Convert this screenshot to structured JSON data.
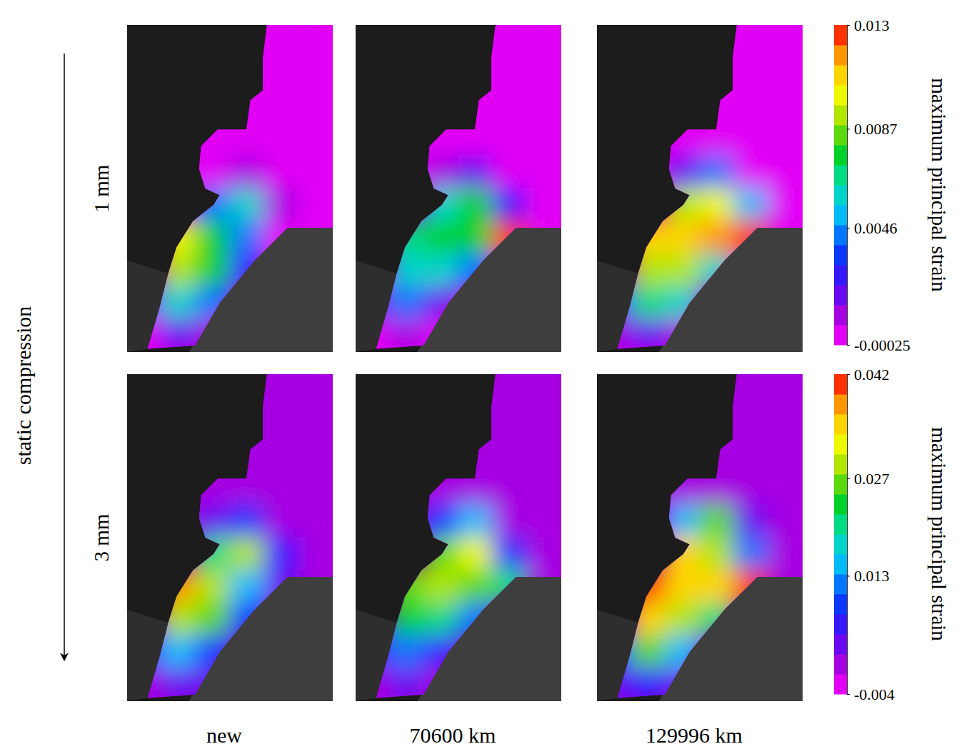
{
  "chart_data": {
    "type": "heatmap",
    "y_label": "static compression",
    "rows": [
      "1 mm",
      "3 mm"
    ],
    "columns": [
      "new",
      "70600 km",
      "129996 km"
    ],
    "colorbars": [
      {
        "label": "maximum principal strain",
        "range": [
          -0.00025,
          0.013
        ],
        "ticks": [
          -0.00025,
          0.0046,
          0.0087,
          0.013
        ]
      },
      {
        "label": "maximum principal strain",
        "range": [
          -0.004,
          0.042
        ],
        "ticks": [
          -0.004,
          0.013,
          0.027,
          0.042
        ]
      }
    ],
    "panels": [
      [
        [
          [
            null,
            null,
            null,
            null,
            0,
            0
          ],
          [
            null,
            null,
            null,
            null,
            0,
            0
          ],
          [
            null,
            null,
            null,
            0,
            0,
            0
          ],
          [
            null,
            null,
            0,
            0,
            0,
            0
          ],
          [
            null,
            null,
            0.0005,
            0.001,
            0,
            0
          ],
          [
            null,
            null,
            0.004,
            0.006,
            0.001,
            0
          ],
          [
            null,
            0.01,
            0.008,
            0.004,
            0.0005,
            null
          ],
          [
            null,
            0.009,
            0.008,
            0.003,
            null,
            null
          ],
          [
            0.002,
            0.006,
            0.004,
            null,
            null,
            null
          ],
          [
            0.0005,
            0.002,
            0.001,
            null,
            null,
            null
          ]
        ],
        [
          [
            null,
            null,
            null,
            null,
            0,
            0
          ],
          [
            null,
            null,
            null,
            null,
            0,
            0
          ],
          [
            null,
            null,
            null,
            0,
            0,
            0
          ],
          [
            null,
            null,
            0,
            0,
            0,
            0
          ],
          [
            null,
            null,
            0.001,
            0.002,
            0,
            0
          ],
          [
            null,
            null,
            0.006,
            0.008,
            0.003,
            0
          ],
          [
            null,
            0.007,
            0.008,
            0.008,
            0.013,
            null
          ],
          [
            null,
            0.006,
            0.006,
            0.004,
            null,
            null
          ],
          [
            0.002,
            0.004,
            0.002,
            null,
            null,
            null
          ],
          [
            0.0005,
            0.001,
            0.0005,
            null,
            null,
            null
          ]
        ],
        [
          [
            null,
            null,
            null,
            null,
            0,
            0
          ],
          [
            null,
            null,
            null,
            null,
            0,
            0
          ],
          [
            null,
            null,
            null,
            0,
            0,
            0
          ],
          [
            null,
            null,
            0,
            0,
            0,
            0
          ],
          [
            null,
            null,
            0.002,
            0.004,
            0,
            0
          ],
          [
            null,
            null,
            0.009,
            0.01,
            0.005,
            0
          ],
          [
            null,
            0.011,
            0.011,
            0.012,
            0.013,
            null
          ],
          [
            null,
            0.009,
            0.009,
            0.006,
            null,
            null
          ],
          [
            0.003,
            0.007,
            0.006,
            null,
            null,
            null
          ],
          [
            0.001,
            0.002,
            0.001,
            null,
            null,
            null
          ]
        ]
      ],
      [
        [
          [
            null,
            null,
            null,
            null,
            0,
            0
          ],
          [
            null,
            null,
            null,
            null,
            0,
            0
          ],
          [
            null,
            null,
            null,
            0,
            0,
            0
          ],
          [
            null,
            null,
            0,
            0,
            0,
            0
          ],
          [
            null,
            null,
            0.004,
            0.008,
            0,
            0
          ],
          [
            null,
            null,
            0.02,
            0.028,
            0.005,
            0
          ],
          [
            null,
            0.038,
            0.03,
            0.015,
            0.003,
            null
          ],
          [
            null,
            0.03,
            0.025,
            0.01,
            null,
            null
          ],
          [
            0.005,
            0.015,
            0.008,
            null,
            null,
            null
          ],
          [
            0.001,
            0.004,
            0.002,
            null,
            null,
            null
          ]
        ],
        [
          [
            null,
            null,
            null,
            null,
            0,
            0
          ],
          [
            null,
            null,
            null,
            null,
            0,
            0
          ],
          [
            null,
            null,
            null,
            0,
            0,
            0
          ],
          [
            null,
            null,
            0,
            0,
            0,
            0
          ],
          [
            null,
            null,
            0.008,
            0.015,
            0.001,
            0
          ],
          [
            null,
            null,
            0.025,
            0.033,
            0.01,
            0
          ],
          [
            null,
            0.025,
            0.028,
            0.027,
            0.02,
            null
          ],
          [
            null,
            0.022,
            0.02,
            0.012,
            null,
            null
          ],
          [
            0.005,
            0.012,
            0.006,
            null,
            null,
            null
          ],
          [
            0.001,
            0.003,
            0.001,
            null,
            null,
            null
          ]
        ],
        [
          [
            null,
            null,
            null,
            null,
            0,
            0
          ],
          [
            null,
            null,
            null,
            null,
            0,
            0
          ],
          [
            null,
            null,
            null,
            0,
            0,
            0
          ],
          [
            null,
            null,
            0,
            0,
            0,
            0
          ],
          [
            null,
            null,
            0.015,
            0.025,
            0.002,
            0
          ],
          [
            null,
            null,
            0.035,
            0.03,
            0.012,
            0
          ],
          [
            null,
            0.042,
            0.035,
            0.035,
            0.04,
            null
          ],
          [
            null,
            0.035,
            0.03,
            0.02,
            null,
            null
          ],
          [
            0.008,
            0.025,
            0.015,
            null,
            null,
            null
          ],
          [
            0.002,
            0.006,
            0.003,
            null,
            null,
            null
          ]
        ]
      ]
    ]
  }
}
